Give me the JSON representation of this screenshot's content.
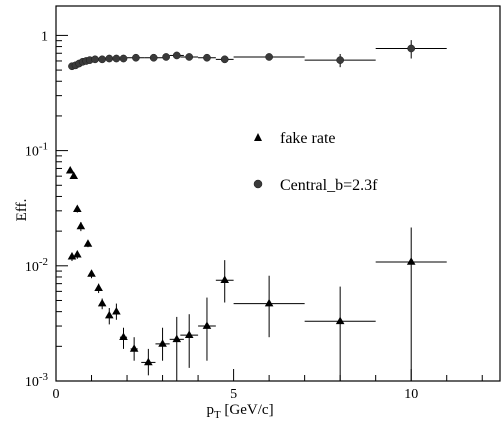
{
  "chart_data": {
    "type": "scatter",
    "xlabel_main": "p",
    "xlabel_sub": "T",
    "xlabel_unit": " [GeV/c]",
    "ylabel": "Eff.",
    "xlim": [
      0,
      12.5
    ],
    "ylim": [
      0.001,
      1.8
    ],
    "yscale": "log",
    "xticks": [
      {
        "v": 0,
        "label": "0"
      },
      {
        "v": 5,
        "label": "5"
      },
      {
        "v": 10,
        "label": "10"
      }
    ],
    "yticks": [
      {
        "exp": 0,
        "label_base": "1",
        "label_exp": ""
      },
      {
        "exp": -1,
        "label_base": "10",
        "label_exp": "-1"
      },
      {
        "exp": -2,
        "label_base": "10",
        "label_exp": "-2"
      },
      {
        "exp": -3,
        "label_base": "10",
        "label_exp": "-3"
      }
    ],
    "legend_placement": "center",
    "legend": [
      {
        "marker": "triangle",
        "label": "fake rate"
      },
      {
        "marker": "circle",
        "label": "Central_b=2.3f"
      }
    ],
    "series": [
      {
        "name": "Central_b=2.3f",
        "marker": "circle",
        "points": [
          {
            "x": 0.45,
            "y": 0.54,
            "xerr": 0.05,
            "yerr": 0.02
          },
          {
            "x": 0.55,
            "y": 0.55,
            "xerr": 0.05,
            "yerr": 0.02
          },
          {
            "x": 0.65,
            "y": 0.57,
            "xerr": 0.05,
            "yerr": 0.02
          },
          {
            "x": 0.75,
            "y": 0.59,
            "xerr": 0.05,
            "yerr": 0.02
          },
          {
            "x": 0.85,
            "y": 0.6,
            "xerr": 0.05,
            "yerr": 0.02
          },
          {
            "x": 0.95,
            "y": 0.61,
            "xerr": 0.05,
            "yerr": 0.02
          },
          {
            "x": 1.1,
            "y": 0.62,
            "xerr": 0.1,
            "yerr": 0.02
          },
          {
            "x": 1.3,
            "y": 0.62,
            "xerr": 0.1,
            "yerr": 0.02
          },
          {
            "x": 1.5,
            "y": 0.63,
            "xerr": 0.1,
            "yerr": 0.02
          },
          {
            "x": 1.7,
            "y": 0.63,
            "xerr": 0.1,
            "yerr": 0.02
          },
          {
            "x": 1.9,
            "y": 0.63,
            "xerr": 0.1,
            "yerr": 0.02
          },
          {
            "x": 2.25,
            "y": 0.64,
            "xerr": 0.25,
            "yerr": 0.02
          },
          {
            "x": 2.75,
            "y": 0.64,
            "xerr": 0.25,
            "yerr": 0.02
          },
          {
            "x": 3.1,
            "y": 0.65,
            "xerr": 0.1,
            "yerr": 0.02
          },
          {
            "x": 3.4,
            "y": 0.67,
            "xerr": 0.2,
            "yerr": 0.03
          },
          {
            "x": 3.75,
            "y": 0.65,
            "xerr": 0.25,
            "yerr": 0.03
          },
          {
            "x": 4.25,
            "y": 0.64,
            "xerr": 0.25,
            "yerr": 0.03
          },
          {
            "x": 4.75,
            "y": 0.62,
            "xerr": 0.25,
            "yerr": 0.04
          },
          {
            "x": 6.0,
            "y": 0.65,
            "xerr": 1.0,
            "yerr": 0.04
          },
          {
            "x": 8.0,
            "y": 0.61,
            "xerr": 1.0,
            "yerr": 0.08
          },
          {
            "x": 10.0,
            "y": 0.77,
            "xerr": 1.0,
            "yerr": 0.14
          }
        ]
      },
      {
        "name": "fake rate",
        "marker": "triangle",
        "points": [
          {
            "x": 0.4,
            "y": 0.067,
            "xerr": 0.0,
            "ylo": 0.064,
            "yhi": 0.07
          },
          {
            "x": 0.5,
            "y": 0.06,
            "xerr": 0.0,
            "ylo": 0.057,
            "yhi": 0.063
          },
          {
            "x": 0.6,
            "y": 0.031,
            "xerr": 0.0,
            "ylo": 0.029,
            "yhi": 0.033
          },
          {
            "x": 0.7,
            "y": 0.022,
            "xerr": 0.0,
            "ylo": 0.02,
            "yhi": 0.024
          },
          {
            "x": 0.45,
            "y": 0.012,
            "xerr": 0.0,
            "ylo": 0.011,
            "yhi": 0.013
          },
          {
            "x": 0.6,
            "y": 0.0125,
            "xerr": 0.0,
            "ylo": 0.0115,
            "yhi": 0.0135
          },
          {
            "x": 0.9,
            "y": 0.0155,
            "xerr": 0.0,
            "ylo": 0.0145,
            "yhi": 0.0165
          },
          {
            "x": 1.0,
            "y": 0.0085,
            "xerr": 0.0,
            "ylo": 0.0078,
            "yhi": 0.0092
          },
          {
            "x": 1.2,
            "y": 0.0064,
            "xerr": 0.0,
            "ylo": 0.0058,
            "yhi": 0.007
          },
          {
            "x": 1.3,
            "y": 0.0047,
            "xerr": 0.0,
            "ylo": 0.0042,
            "yhi": 0.0052
          },
          {
            "x": 1.5,
            "y": 0.0037,
            "xerr": 0.0,
            "ylo": 0.0031,
            "yhi": 0.0043
          },
          {
            "x": 1.7,
            "y": 0.004,
            "xerr": 0.0,
            "ylo": 0.0034,
            "yhi": 0.0047
          },
          {
            "x": 1.9,
            "y": 0.0024,
            "xerr": 0.1,
            "ylo": 0.0019,
            "yhi": 0.0029
          },
          {
            "x": 2.2,
            "y": 0.0019,
            "xerr": 0.1,
            "ylo": 0.0015,
            "yhi": 0.0024
          },
          {
            "x": 2.6,
            "y": 0.00145,
            "xerr": 0.2,
            "ylo": 0.00112,
            "yhi": 0.0019
          },
          {
            "x": 3.0,
            "y": 0.0021,
            "xerr": 0.2,
            "ylo": 0.0015,
            "yhi": 0.0029
          },
          {
            "x": 3.4,
            "y": 0.0023,
            "xerr": 0.2,
            "ylo": 0.001,
            "yhi": 0.0036
          },
          {
            "x": 3.75,
            "y": 0.0025,
            "xerr": 0.25,
            "ylo": 0.0013,
            "yhi": 0.0038
          },
          {
            "x": 4.25,
            "y": 0.003,
            "xerr": 0.25,
            "ylo": 0.0015,
            "yhi": 0.0053
          },
          {
            "x": 4.75,
            "y": 0.0075,
            "xerr": 0.25,
            "ylo": 0.0048,
            "yhi": 0.0112
          },
          {
            "x": 6.0,
            "y": 0.0047,
            "xerr": 1.0,
            "ylo": 0.0024,
            "yhi": 0.0082
          },
          {
            "x": 8.0,
            "y": 0.0033,
            "xerr": 1.0,
            "ylo": 0.001,
            "yhi": 0.0066
          },
          {
            "x": 10.0,
            "y": 0.0108,
            "xerr": 1.0,
            "ylo": 0.001,
            "yhi": 0.0215
          }
        ]
      }
    ]
  }
}
